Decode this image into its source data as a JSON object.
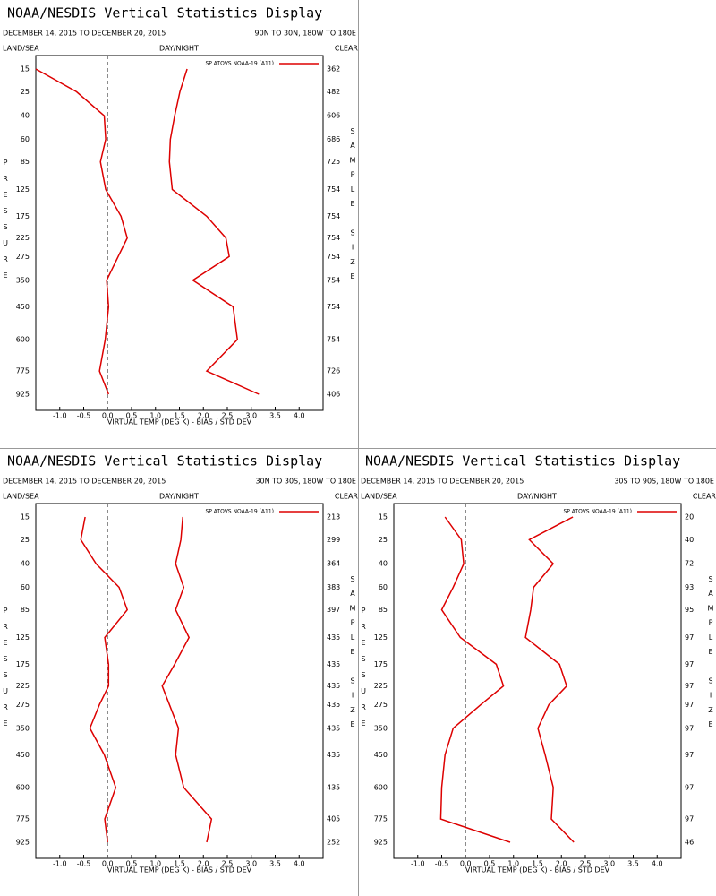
{
  "chart_data": [
    {
      "type": "line",
      "title": "NOAA/NESDIS Vertical Statistics Display",
      "subtitle": "DECEMBER 14, 2015 TO DECEMBER 20, 2015",
      "region": "90N TO 30N, 180W TO 180E",
      "left_label": "LAND/SEA",
      "center_label": "DAY/NIGHT",
      "right_label": "CLEAR",
      "xlabel": "VIRTUAL TEMP (DEG K) - BIAS / STD DEV",
      "ylabel": "PRESSURE",
      "y2label": "SAMPLE SIZE",
      "y": [
        15,
        25,
        40,
        60,
        85,
        125,
        175,
        225,
        275,
        350,
        450,
        600,
        775,
        925
      ],
      "sample_size": [
        362,
        482,
        606,
        686,
        725,
        754,
        754,
        754,
        754,
        754,
        754,
        754,
        726,
        406
      ],
      "series": [
        {
          "name": "SP ATOVS NOAA-19 (A11)",
          "color": "#dd0000",
          "values": [
            -1.5,
            -0.65,
            -0.07,
            -0.04,
            -0.15,
            -0.04,
            0.28,
            0.41,
            0.22,
            -0.02,
            0.02,
            -0.05,
            -0.17,
            0.02
          ]
        },
        {
          "color": "#dd0000",
          "values": [
            1.66,
            1.51,
            1.4,
            1.31,
            1.29,
            1.35,
            2.07,
            2.47,
            2.54,
            1.78,
            2.62,
            2.71,
            2.07,
            3.16
          ]
        }
      ],
      "xlim": [
        -1.5,
        4.5
      ],
      "xticks": [
        {
          "value": -1,
          "label": "-1.0"
        },
        {
          "value": -0.5,
          "label": "-0.5"
        },
        {
          "value": 0,
          "label": "0.0"
        },
        {
          "value": 0.5,
          "label": "0.5"
        },
        {
          "value": 1,
          "label": "1.0"
        },
        {
          "value": 1.5,
          "label": "1.5"
        },
        {
          "value": 2,
          "label": "2.0"
        },
        {
          "value": 2.5,
          "label": "2.5"
        },
        {
          "value": 3,
          "label": "3.0"
        },
        {
          "value": 3.5,
          "label": "3.5"
        },
        {
          "value": 4,
          "label": "4.0"
        }
      ],
      "legend": "upper right"
    },
    {
      "type": "line",
      "title": "NOAA/NESDIS Vertical Statistics Display",
      "subtitle": "DECEMBER 14, 2015 TO DECEMBER 20, 2015",
      "region": "30N TO 30S, 180W TO 180E",
      "left_label": "LAND/SEA",
      "center_label": "DAY/NIGHT",
      "right_label": "CLEAR",
      "xlabel": "VIRTUAL TEMP (DEG K) - BIAS / STD DEV",
      "ylabel": "PRESSURE",
      "y2label": "SAMPLE SIZE",
      "y": [
        15,
        25,
        40,
        60,
        85,
        125,
        175,
        225,
        275,
        350,
        450,
        600,
        775,
        925
      ],
      "sample_size": [
        213,
        299,
        364,
        383,
        397,
        435,
        435,
        435,
        435,
        435,
        435,
        435,
        405,
        252
      ],
      "series": [
        {
          "name": "SP ATOVS NOAA-19 (A11)",
          "color": "#dd0000",
          "values": [
            -0.47,
            -0.56,
            -0.24,
            0.24,
            0.41,
            -0.06,
            0.02,
            0.02,
            -0.17,
            -0.37,
            -0.07,
            0.17,
            -0.06,
            0.0
          ]
        },
        {
          "color": "#dd0000",
          "values": [
            1.57,
            1.53,
            1.42,
            1.59,
            1.42,
            1.7,
            1.4,
            1.14,
            1.29,
            1.48,
            1.42,
            1.59,
            2.17,
            2.07
          ]
        }
      ],
      "xlim": [
        -1.5,
        4.5
      ],
      "xticks": [
        {
          "value": -1,
          "label": "-1.0"
        },
        {
          "value": -0.5,
          "label": "-0.5"
        },
        {
          "value": 0,
          "label": "0.0"
        },
        {
          "value": 0.5,
          "label": "0.5"
        },
        {
          "value": 1,
          "label": "1.0"
        },
        {
          "value": 1.5,
          "label": "1.5"
        },
        {
          "value": 2,
          "label": "2.0"
        },
        {
          "value": 2.5,
          "label": "2.5"
        },
        {
          "value": 3,
          "label": "3.0"
        },
        {
          "value": 3.5,
          "label": "3.5"
        },
        {
          "value": 4,
          "label": "4.0"
        }
      ],
      "legend": "upper right"
    },
    {
      "type": "line",
      "title": "NOAA/NESDIS Vertical Statistics Display",
      "subtitle": "DECEMBER 14, 2015 TO DECEMBER 20, 2015",
      "region": "30S TO 90S, 180W TO 180E",
      "left_label": "LAND/SEA",
      "center_label": "DAY/NIGHT",
      "right_label": "CLEAR",
      "xlabel": "VIRTUAL TEMP (DEG K) - BIAS / STD DEV",
      "ylabel": "PRESSURE",
      "y2label": "SAMPLE SIZE",
      "y": [
        15,
        25,
        40,
        60,
        85,
        125,
        175,
        225,
        275,
        350,
        450,
        600,
        775,
        925
      ],
      "sample_size": [
        20,
        40,
        72,
        93,
        95,
        97,
        97,
        97,
        97,
        97,
        97,
        97,
        97,
        46
      ],
      "series": [
        {
          "name": "SP ATOVS NOAA-19 (A11)",
          "color": "#dd0000",
          "values": [
            -0.43,
            -0.09,
            -0.04,
            -0.26,
            -0.5,
            -0.11,
            0.64,
            0.79,
            0.32,
            -0.26,
            -0.43,
            -0.5,
            -0.52,
            0.93
          ]
        },
        {
          "color": "#dd0000",
          "values": [
            2.24,
            1.33,
            1.83,
            1.42,
            1.36,
            1.25,
            1.96,
            2.11,
            1.74,
            1.51,
            1.66,
            1.83,
            1.79,
            2.26
          ]
        }
      ],
      "xlim": [
        -1.5,
        4.5
      ],
      "xticks": [
        {
          "value": -1,
          "label": "-1.0"
        },
        {
          "value": -0.5,
          "label": "-0.5"
        },
        {
          "value": 0,
          "label": "0.0"
        },
        {
          "value": 0.5,
          "label": "0.5"
        },
        {
          "value": 1,
          "label": "1.0"
        },
        {
          "value": 1.5,
          "label": "1.5"
        },
        {
          "value": 2,
          "label": "2.0"
        },
        {
          "value": 2.5,
          "label": "2.5"
        },
        {
          "value": 3,
          "label": "3.0"
        },
        {
          "value": 3.5,
          "label": "3.5"
        },
        {
          "value": 4,
          "label": "4.0"
        }
      ],
      "legend": "upper right"
    }
  ]
}
